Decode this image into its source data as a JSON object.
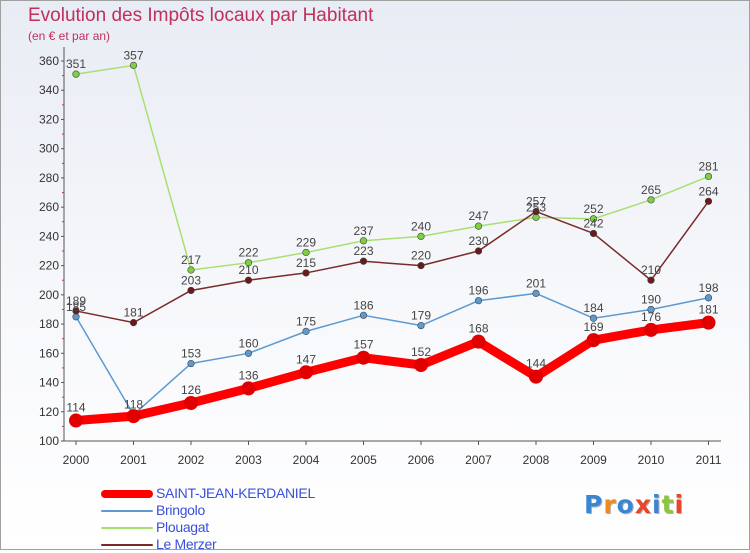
{
  "header": {
    "title": "Evolution des Impôts locaux par Habitant",
    "subtitle": "(en € et par an)"
  },
  "logo": {
    "text": "Proxiti",
    "colors": [
      "#3a86d4",
      "#f08a1c",
      "#3a86d4",
      "#e8462a",
      "#3a86d4",
      "#8cc63f",
      "#e8462a"
    ]
  },
  "colors": {
    "title": "#c0305a",
    "legend_text": "#3b4fd8",
    "axis_text": "#333333"
  },
  "chart_data": {
    "type": "line",
    "title": "Evolution des Impôts locaux par Habitant",
    "subtitle": "(en € et par an)",
    "xlabel": "",
    "ylabel": "",
    "x": [
      "2000",
      "2001",
      "2002",
      "2003",
      "2004",
      "2005",
      "2006",
      "2007",
      "2008",
      "2009",
      "2010",
      "2011"
    ],
    "ylim": [
      100,
      360
    ],
    "yticks": [
      100,
      120,
      140,
      160,
      180,
      200,
      220,
      240,
      260,
      280,
      300,
      320,
      340,
      360
    ],
    "grid": false,
    "legend": "bottom-left",
    "series": [
      {
        "name": "SAINT-JEAN-KERDANIEL",
        "color": "#ff0000",
        "point_color": "#e00000",
        "thick": true,
        "values": [
          114,
          117,
          126,
          136,
          147,
          157,
          152,
          168,
          144,
          169,
          176,
          181
        ],
        "labels": [
          "114",
          "",
          "126",
          "136",
          "147",
          "157",
          "152",
          "168",
          "144",
          "169",
          "176",
          "181"
        ]
      },
      {
        "name": "Bringolo",
        "color": "#5c9ad0",
        "point_color": "#5c9ad0",
        "thick": false,
        "values": [
          185,
          118,
          153,
          160,
          175,
          186,
          179,
          196,
          201,
          184,
          190,
          198
        ],
        "labels": [
          "185",
          "118",
          "153",
          "160",
          "175",
          "186",
          "179",
          "196",
          "201",
          "184",
          "190",
          "198"
        ]
      },
      {
        "name": "Plouagat",
        "color": "#a8e070",
        "point_color": "#7ed040",
        "thick": false,
        "values": [
          351,
          357,
          217,
          222,
          229,
          237,
          240,
          247,
          253,
          252,
          265,
          281
        ],
        "labels": [
          "351",
          "357",
          "217",
          "222",
          "229",
          "237",
          "240",
          "247",
          "253",
          "252",
          "265",
          "281"
        ]
      },
      {
        "name": "Le Merzer",
        "color": "#7a2a2a",
        "point_color": "#6a1a1a",
        "thick": false,
        "values": [
          189,
          181,
          203,
          210,
          215,
          223,
          220,
          230,
          257,
          242,
          210,
          264
        ],
        "labels": [
          "189",
          "181",
          "203",
          "210",
          "215",
          "223",
          "220",
          "230",
          "257",
          "242",
          "210",
          "264"
        ]
      }
    ]
  }
}
